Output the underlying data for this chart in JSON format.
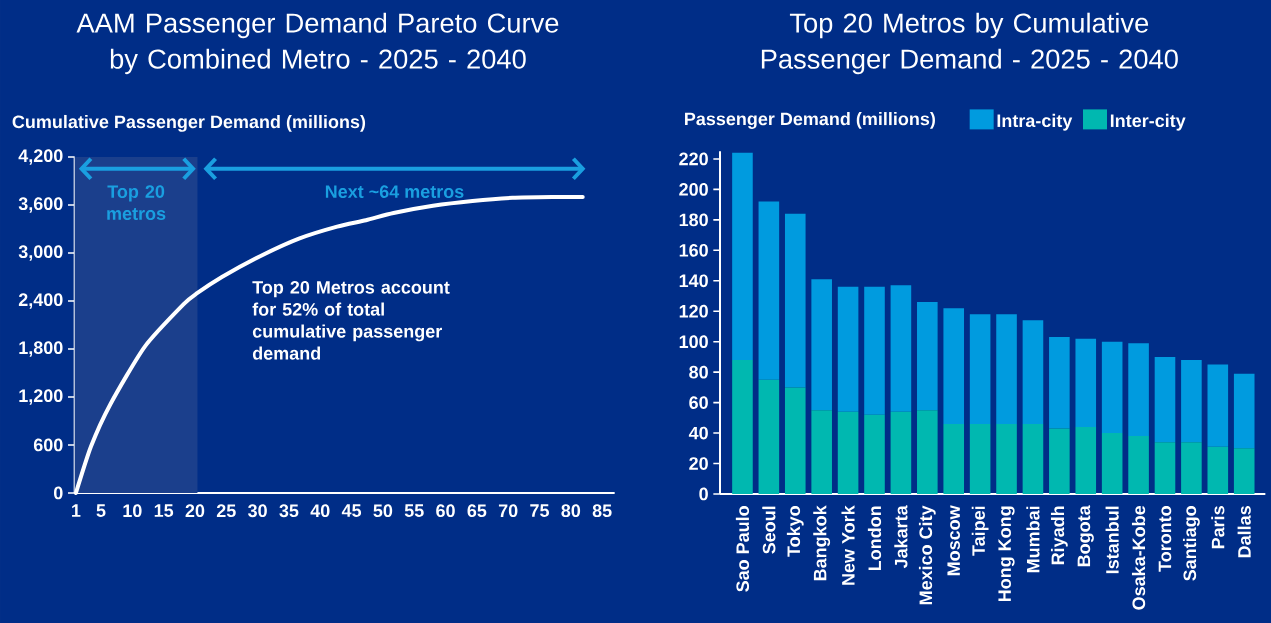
{
  "chart_data": [
    {
      "type": "line",
      "title": "AAM Passenger Demand Pareto Curve by Combined Metro - 2025 - 2040",
      "ylabel": "Cumulative Passenger Demand (millions)",
      "x": [
        1,
        3.4,
        6.5,
        12,
        18.2,
        20.4,
        24.3,
        30.4,
        36.6,
        42.7,
        47.3,
        51.7,
        58,
        64.3,
        70.7,
        77,
        81.9
      ],
      "series": [
        {
          "color": "#ffffff",
          "values": [
            0,
            580,
            1110,
            1830,
            2360,
            2500,
            2700,
            2960,
            3180,
            3330,
            3410,
            3500,
            3590,
            3650,
            3690,
            3700,
            3700
          ]
        }
      ],
      "xlim": [
        0.8,
        87
      ],
      "xticks": [
        1,
        5,
        10,
        15,
        20,
        25,
        30,
        35,
        40,
        45,
        50,
        55,
        60,
        65,
        70,
        75,
        80,
        85
      ],
      "ylim": [
        0,
        4200
      ],
      "yticks": [
        0,
        {
          "value": 600,
          "label": "600"
        },
        {
          "value": 1200,
          "label": "1,200"
        },
        {
          "value": 1800,
          "label": "1,800"
        },
        {
          "value": 2400,
          "label": "2,400"
        },
        {
          "value": 3000,
          "label": "3,000"
        },
        {
          "value": 3600,
          "label": "3,600"
        },
        {
          "value": 4200,
          "label": "4,200"
        }
      ],
      "bands": [
        {
          "axis": "x",
          "from": 0.8,
          "to": 20.4,
          "label": "Top 20 metros",
          "color": "#1b3f8c"
        }
      ],
      "annotations": [
        "Next ~64 metros",
        "Top 20 Metros account for 52% of total cumulative passenger demand"
      ],
      "marker": "none",
      "line_style": "solid",
      "grid": false
    },
    {
      "type": "bar",
      "stacked": true,
      "title": "Top 20 Metros by Cumulative Passenger Demand - 2025 - 2040",
      "ylabel": "Passenger Demand (millions)",
      "categories": [
        "Sao Paulo",
        "Seoul",
        "Tokyo",
        "Bangkok",
        "New York",
        "London",
        "Jakarta",
        "Mexico City",
        "Moscow",
        "Taipei",
        "Hong Kong",
        "Mumbai",
        "Riyadh",
        "Bogota",
        "Istanbul",
        "Osaka-Kobe",
        "Toronto",
        "Santiago",
        "Paris",
        "Dallas"
      ],
      "series": [
        {
          "name": "Inter-city",
          "color": "#00b8b0",
          "values": [
            88,
            75,
            70,
            55,
            54,
            52,
            54,
            55,
            46,
            46,
            46,
            46,
            43,
            44,
            40,
            38,
            34,
            34,
            31,
            30
          ]
        },
        {
          "name": "Intra-city",
          "color": "#009bdf",
          "values": [
            136,
            117,
            114,
            86,
            82,
            84,
            83,
            71,
            76,
            72,
            72,
            68,
            60,
            58,
            60,
            61,
            56,
            54,
            54,
            49
          ]
        }
      ],
      "ylim": [
        0,
        225
      ],
      "yticks": [
        0,
        20,
        40,
        60,
        80,
        100,
        120,
        140,
        160,
        180,
        200,
        220
      ],
      "legend": "top",
      "grid": false
    }
  ]
}
